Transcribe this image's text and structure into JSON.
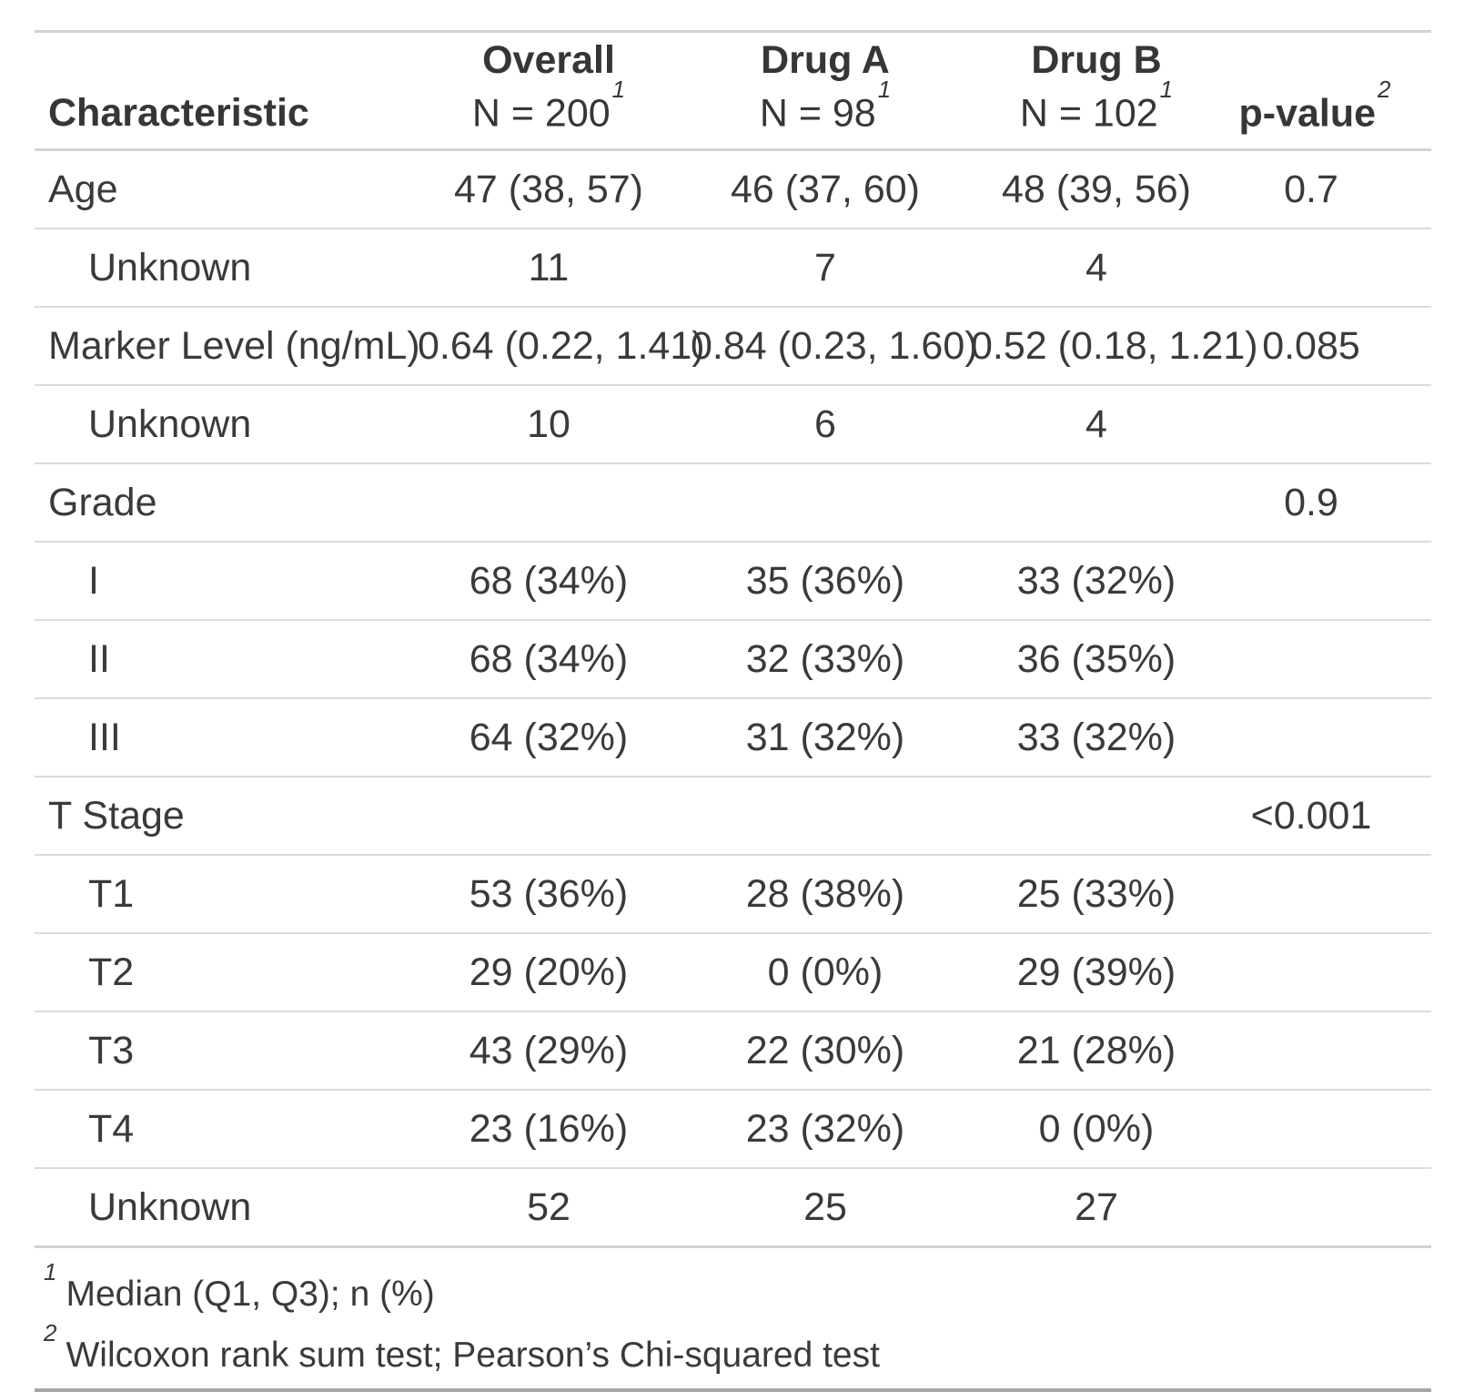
{
  "table": {
    "columns": [
      {
        "label": "Characteristic",
        "sublabel": "",
        "footnote_mark": ""
      },
      {
        "label": "Overall",
        "sublabel": "N = 200",
        "footnote_mark": "1"
      },
      {
        "label": "Drug A",
        "sublabel": "N = 98",
        "footnote_mark": "1"
      },
      {
        "label": "Drug B",
        "sublabel": "N = 102",
        "footnote_mark": "1"
      },
      {
        "label": "p-value",
        "sublabel": "",
        "footnote_mark": "2"
      }
    ],
    "rows": [
      {
        "label": "Age",
        "cells": [
          "47 (38, 57)",
          "46 (37, 60)",
          "48 (39, 56)",
          "0.7"
        ]
      },
      {
        "label": "Unknown",
        "cells": [
          "11",
          "7",
          "4",
          ""
        ]
      },
      {
        "label": "Marker Level (ng/mL)",
        "cells": [
          "0.64 (0.22, 1.41)",
          "0.84 (0.23, 1.60)",
          "0.52 (0.18, 1.21)",
          "0.085"
        ]
      },
      {
        "label": "Unknown",
        "cells": [
          "10",
          "6",
          "4",
          ""
        ]
      },
      {
        "label": "Grade",
        "cells": [
          "",
          "",
          "",
          "0.9"
        ]
      },
      {
        "label": "I",
        "cells": [
          "68 (34%)",
          "35 (36%)",
          "33 (32%)",
          ""
        ]
      },
      {
        "label": "II",
        "cells": [
          "68 (34%)",
          "32 (33%)",
          "36 (35%)",
          ""
        ]
      },
      {
        "label": "III",
        "cells": [
          "64 (32%)",
          "31 (32%)",
          "33 (32%)",
          ""
        ]
      },
      {
        "label": "T Stage",
        "cells": [
          "",
          "",
          "",
          "<0.001"
        ]
      },
      {
        "label": "T1",
        "cells": [
          "53 (36%)",
          "28 (38%)",
          "25 (33%)",
          ""
        ]
      },
      {
        "label": "T2",
        "cells": [
          "29 (20%)",
          "0 (0%)",
          "29 (39%)",
          ""
        ]
      },
      {
        "label": "T3",
        "cells": [
          "43 (29%)",
          "22 (30%)",
          "21 (28%)",
          ""
        ]
      },
      {
        "label": "T4",
        "cells": [
          "23 (16%)",
          "23 (32%)",
          "0 (0%)",
          ""
        ]
      },
      {
        "label": "Unknown",
        "cells": [
          "52",
          "25",
          "27",
          ""
        ]
      }
    ],
    "footnotes": [
      {
        "mark": "1",
        "text": "Median (Q1, Q3); n (%)"
      },
      {
        "mark": "2",
        "text": "Wilcoxon rank sum test; Pearson’s Chi-squared test"
      }
    ]
  },
  "chart_data": {
    "type": "table",
    "title": "",
    "columns": [
      "Characteristic",
      "Overall N = 200",
      "Drug A N = 98",
      "Drug B N = 102",
      "p-value"
    ],
    "group_sizes": {
      "overall": 200,
      "drug_a": 98,
      "drug_b": 102
    },
    "rows": [
      [
        "Age",
        "47 (38, 57)",
        "46 (37, 60)",
        "48 (39, 56)",
        "0.7"
      ],
      [
        "Unknown",
        "11",
        "7",
        "4",
        ""
      ],
      [
        "Marker Level (ng/mL)",
        "0.64 (0.22, 1.41)",
        "0.84 (0.23, 1.60)",
        "0.52 (0.18, 1.21)",
        "0.085"
      ],
      [
        "Unknown",
        "10",
        "6",
        "4",
        ""
      ],
      [
        "Grade",
        "",
        "",
        "",
        "0.9"
      ],
      [
        "I",
        "68 (34%)",
        "35 (36%)",
        "33 (32%)",
        ""
      ],
      [
        "II",
        "68 (34%)",
        "32 (33%)",
        "36 (35%)",
        ""
      ],
      [
        "III",
        "64 (32%)",
        "31 (32%)",
        "33 (32%)",
        ""
      ],
      [
        "T Stage",
        "",
        "",
        "",
        "<0.001"
      ],
      [
        "T1",
        "53 (36%)",
        "28 (38%)",
        "25 (33%)",
        ""
      ],
      [
        "T2",
        "29 (20%)",
        "0 (0%)",
        "29 (39%)",
        ""
      ],
      [
        "T3",
        "43 (29%)",
        "22 (30%)",
        "21 (28%)",
        ""
      ],
      [
        "T4",
        "23 (16%)",
        "23 (32%)",
        "0 (0%)",
        ""
      ],
      [
        "Unknown",
        "52",
        "25",
        "27",
        ""
      ]
    ],
    "footnotes": [
      "1 Median (Q1, Q3); n (%)",
      "2 Wilcoxon rank sum test; Pearson’s Chi-squared test"
    ]
  }
}
